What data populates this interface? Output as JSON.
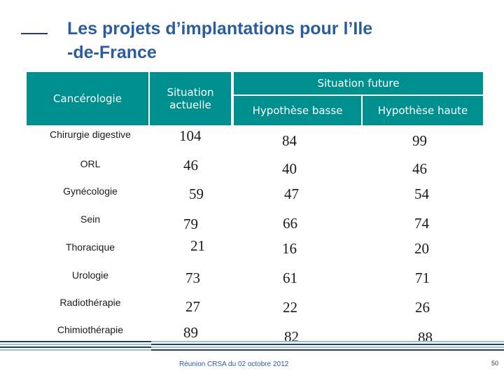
{
  "title_line1": "Les projets d’implantations pour l’Ile",
  "title_line2": "-de-France",
  "table": {
    "headers": {
      "specialty": "Cancérologie",
      "current": "Situation actuelle",
      "future": "Situation future",
      "low": "Hypothèse basse",
      "high": "Hypothèse haute"
    },
    "rows": [
      {
        "label": "Chirurgie digestive",
        "current": "104",
        "low": "84",
        "high": "99"
      },
      {
        "label": "ORL",
        "current": "46",
        "low": "40",
        "high": "46"
      },
      {
        "label": "Gynécologie",
        "current": "59",
        "low": "47",
        "high": "54"
      },
      {
        "label": "Sein",
        "current": "79",
        "low": "66",
        "high": "74"
      },
      {
        "label": "Thoracique",
        "current": "21",
        "low": "16",
        "high": "20"
      },
      {
        "label": "Urologie",
        "current": "73",
        "low": "61",
        "high": "71"
      },
      {
        "label": "Radiothérapie",
        "current": "27",
        "low": "22",
        "high": "26"
      },
      {
        "label": "Chimiothérapie",
        "current": "89",
        "low": "82",
        "high": "88"
      }
    ]
  },
  "footer": "Réunion CRSA du 02 octobre 2012",
  "page_number": "50",
  "colors": {
    "title": "#2b5d9e",
    "header_bg": "#008f8f",
    "stripe_dark": "#1f3e6b",
    "stripe_light": "#9cc2d8"
  }
}
